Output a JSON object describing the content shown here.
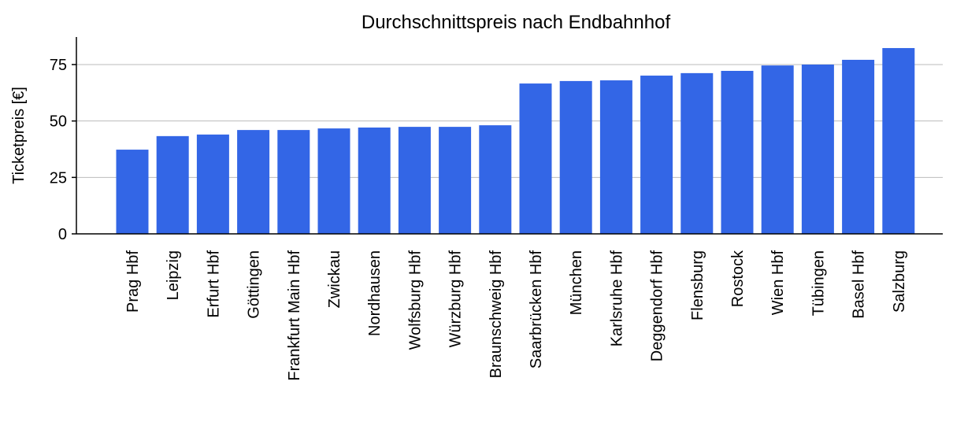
{
  "chart_data": {
    "type": "bar",
    "title": "Durchschnittspreis nach Endbahnhof",
    "ylabel": "Ticketpreis [€]",
    "categories": [
      "Prag Hbf",
      "Leipzig",
      "Erfurt Hbf",
      "Göttingen",
      "Frankfurt Main Hbf",
      "Zwickau",
      "Nordhausen",
      "Wolfsburg Hbf",
      "Würzburg Hbf",
      "Braunschweig Hbf",
      "Saarbrücken Hbf",
      "München",
      "Karlsruhe Hbf",
      "Deggendorf Hbf",
      "Flensburg",
      "Rostock",
      "Wien Hbf",
      "Tübingen",
      "Basel Hbf",
      "Salzburg"
    ],
    "values": [
      37.3,
      43.3,
      44,
      46,
      46,
      46.7,
      47.1,
      47.4,
      47.4,
      48.1,
      66.6,
      67.7,
      68,
      70.1,
      71.2,
      72.2,
      74.6,
      75,
      77.1,
      82.3
    ],
    "color": "#3366e6",
    "ylim": [
      0,
      87.2
    ],
    "yticks": [
      0,
      25,
      50,
      75
    ],
    "grid": true
  }
}
